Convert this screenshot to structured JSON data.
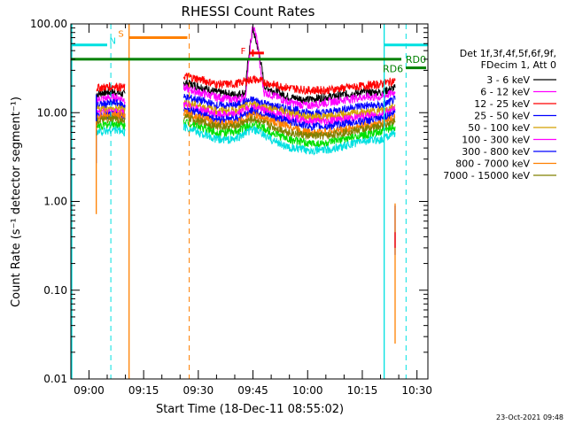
{
  "chart_data": {
    "type": "line",
    "title": "RHESSI Count Rates",
    "xlabel": "Start Time (18-Dec-11 08:55:02)",
    "ylabel": "Count Rate (s⁻¹ detector segment⁻¹)",
    "y_scale": "log",
    "ylim": [
      0.01,
      100
    ],
    "xlim": [
      "08:55:02",
      "10:33:00"
    ],
    "x_ticks": [
      "09:00",
      "09:15",
      "09:30",
      "09:45",
      "10:00",
      "10:15",
      "10:30"
    ],
    "y_ticks": [
      "0.01",
      "0.10",
      "1.00",
      "10.00",
      "100.00"
    ],
    "legend_position": "right",
    "legend_header": [
      "Det 1f,3f,4f,5f,6f,9f,",
      "FDecim 1, Att 0"
    ],
    "series": [
      {
        "name": "3 - 6 keV",
        "color": "#000000",
        "x": [
          "09:02",
          "09:04",
          "09:07",
          "09:10",
          "09:26",
          "09:30",
          "09:35",
          "09:40",
          "09:43",
          "09:44",
          "09:45",
          "09:46",
          "09:48",
          "09:50",
          "09:55",
          "10:00",
          "10:05",
          "10:10",
          "10:15",
          "10:20",
          "10:24"
        ],
        "y": [
          16,
          17,
          17,
          16,
          22,
          20,
          17,
          16,
          17,
          50,
          85,
          60,
          20,
          18,
          15,
          14,
          15,
          16,
          17,
          17,
          19
        ]
      },
      {
        "name": "6 - 12 keV",
        "color": "#ff00ff",
        "x": [
          "09:02",
          "09:07",
          "09:10",
          "09:26",
          "09:30",
          "09:35",
          "09:40",
          "09:43",
          "09:44",
          "09:45",
          "09:46",
          "09:47",
          "09:48",
          "09:50",
          "09:55",
          "10:00",
          "10:05",
          "10:10",
          "10:15",
          "10:20",
          "10:24"
        ],
        "y": [
          14,
          15,
          14,
          19,
          17,
          15,
          14,
          15,
          40,
          95,
          70,
          30,
          17,
          16,
          13,
          12,
          13,
          14,
          15,
          15,
          17
        ]
      },
      {
        "name": "12 - 25 keV",
        "color": "#ff0000",
        "x": [
          "09:02",
          "09:07",
          "09:10",
          "09:26",
          "09:30",
          "09:35",
          "09:40",
          "09:45",
          "09:50",
          "09:55",
          "10:00",
          "10:05",
          "10:10",
          "10:15",
          "10:20",
          "10:24"
        ],
        "y": [
          19,
          20,
          19,
          26,
          24,
          21,
          21,
          24,
          21,
          19,
          18,
          18,
          19,
          20,
          21,
          23
        ]
      },
      {
        "name": "25 - 50 keV",
        "color": "#0000ff",
        "x": [
          "09:02",
          "09:07",
          "09:10",
          "09:26",
          "09:30",
          "09:35",
          "09:40",
          "09:45",
          "09:50",
          "09:55",
          "10:00",
          "10:05",
          "10:10",
          "10:15",
          "10:20",
          "10:24"
        ],
        "y": [
          12,
          13,
          12,
          15,
          14,
          12,
          12,
          14,
          12,
          11,
          10,
          10,
          11,
          12,
          12,
          14
        ]
      },
      {
        "name": "50 - 100 keV",
        "color": "#d4a000",
        "x": [
          "09:02",
          "09:07",
          "09:10",
          "09:26",
          "09:30",
          "09:35",
          "09:40",
          "09:45",
          "09:50",
          "09:55",
          "10:00",
          "10:05",
          "10:10",
          "10:15",
          "10:20",
          "10:24"
        ],
        "y": [
          11,
          11,
          11,
          13,
          12,
          10.5,
          10.5,
          12.5,
          11,
          10,
          9,
          9,
          9.5,
          10,
          10.5,
          12
        ]
      },
      {
        "name": "100 - 300 keV",
        "color": "#ff00ff",
        "x": [
          "09:02",
          "09:07",
          "09:10",
          "09:26",
          "09:30",
          "09:35",
          "09:40",
          "09:45",
          "09:50",
          "09:55",
          "10:00",
          "10:05",
          "10:10",
          "10:15",
          "10:20",
          "10:24"
        ],
        "y": [
          10,
          10,
          10,
          12,
          11,
          9.5,
          9.5,
          11.5,
          10,
          9,
          8,
          8,
          8.5,
          9,
          9.5,
          11
        ]
      },
      {
        "name": "300 - 800 keV",
        "color": "#0000ff",
        "x": [
          "09:02",
          "09:07",
          "09:10",
          "09:26",
          "09:30",
          "09:35",
          "09:40",
          "09:45",
          "09:50",
          "09:55",
          "10:00",
          "10:05",
          "10:10",
          "10:15",
          "10:20",
          "10:24"
        ],
        "y": [
          9,
          9.5,
          9,
          11,
          10,
          8.5,
          8.5,
          10.5,
          9,
          8,
          7,
          7,
          7.5,
          8,
          8.5,
          10
        ]
      },
      {
        "name": "800 - 7000 keV",
        "color": "#ff8000",
        "x": [
          "09:02",
          "09:07",
          "09:10",
          "09:26",
          "09:30",
          "09:35",
          "09:40",
          "09:45",
          "09:50",
          "09:55",
          "10:00",
          "10:05",
          "10:10",
          "10:15",
          "10:20",
          "10:24"
        ],
        "y": [
          9,
          9.5,
          9,
          10,
          9,
          7.5,
          7.5,
          9.5,
          8,
          7,
          6,
          6,
          6.5,
          7,
          7.5,
          9
        ]
      },
      {
        "name": "7000 - 15000 keV",
        "color": "#808000",
        "x": [
          "09:02",
          "09:07",
          "09:10",
          "09:26",
          "09:30",
          "09:35",
          "09:40",
          "09:45",
          "09:50",
          "09:55",
          "10:00",
          "10:05",
          "10:10",
          "10:15",
          "10:20",
          "10:24"
        ],
        "y": [
          8,
          8.5,
          8,
          9,
          8,
          7,
          7,
          8.5,
          7,
          6,
          5.5,
          5.5,
          6,
          6.5,
          7,
          8
        ]
      },
      {
        "name": "",
        "color": "#00e000",
        "x": [
          "09:02",
          "09:07",
          "09:10",
          "09:26",
          "09:30",
          "09:35",
          "09:40",
          "09:45",
          "09:50",
          "09:55",
          "10:00",
          "10:05",
          "10:10",
          "10:15",
          "10:20",
          "10:24"
        ],
        "y": [
          7,
          7.5,
          7,
          8,
          7,
          6,
          6,
          7.5,
          6,
          5,
          4.5,
          4.5,
          5,
          5.5,
          6,
          7
        ]
      },
      {
        "name": "",
        "color": "#00e0e0",
        "x": [
          "09:02",
          "09:07",
          "09:10",
          "09:26",
          "09:30",
          "09:35",
          "09:40",
          "09:45",
          "09:50",
          "09:55",
          "10:00",
          "10:05",
          "10:10",
          "10:15",
          "10:20",
          "10:24"
        ],
        "y": [
          6,
          6.5,
          6,
          7,
          6,
          5,
          5,
          6.5,
          5,
          4,
          3.8,
          3.8,
          4.2,
          4.8,
          5,
          6
        ]
      }
    ],
    "spikes": [
      {
        "x": "09:02",
        "from": 2.7,
        "to": 16,
        "color": "#0000ff"
      },
      {
        "x": "09:02",
        "from": 0.72,
        "to": 8,
        "color": "#ff8000"
      },
      {
        "x": "10:24",
        "from": 0.25,
        "to": 0.9,
        "color": "#0000ff"
      },
      {
        "x": "10:24",
        "from": 0.025,
        "to": 0.95,
        "color": "#ff8000"
      },
      {
        "x": "10:24",
        "from": 0.3,
        "to": 0.45,
        "color": "#ff0000"
      }
    ],
    "annotations": {
      "orange_solid_line": {
        "x": "09:11:00",
        "color": "#ff8000"
      },
      "orange_dashed_line": {
        "x": "09:27:30",
        "color": "#ff8000"
      },
      "orange_bar": {
        "label": "S",
        "x_start": "09:11",
        "x_end": "09:27",
        "y": 70,
        "color": "#ff8000"
      },
      "cyan_solid_line": {
        "x": "10:21:00",
        "color": "#00e0e0"
      },
      "cyan_dashed_lines": [
        {
          "x": "09:06:00"
        },
        {
          "x": "10:27:00"
        }
      ],
      "cyan_bars": [
        {
          "label": "N",
          "x_start": "08:55",
          "x_end": "09:05",
          "y": 58,
          "color": "#00e0e0"
        },
        {
          "label": "",
          "x_start": "10:21",
          "x_end": "10:33",
          "y": 58,
          "color": "#00e0e0"
        }
      ],
      "green_line": {
        "label": "RD0",
        "y": 40,
        "x_start": "08:55",
        "x_end": "10:33",
        "color": "#008000"
      },
      "green_bar": {
        "label": "RD6",
        "x_start": "10:25",
        "x_end": "10:33",
        "y": 32,
        "color": "#008000"
      },
      "flare_bar": {
        "label": "F",
        "x_start": "09:44",
        "x_end": "09:48",
        "y": 47,
        "color": "#ff0000"
      }
    },
    "footer": "23-Oct-2021 09:48"
  }
}
